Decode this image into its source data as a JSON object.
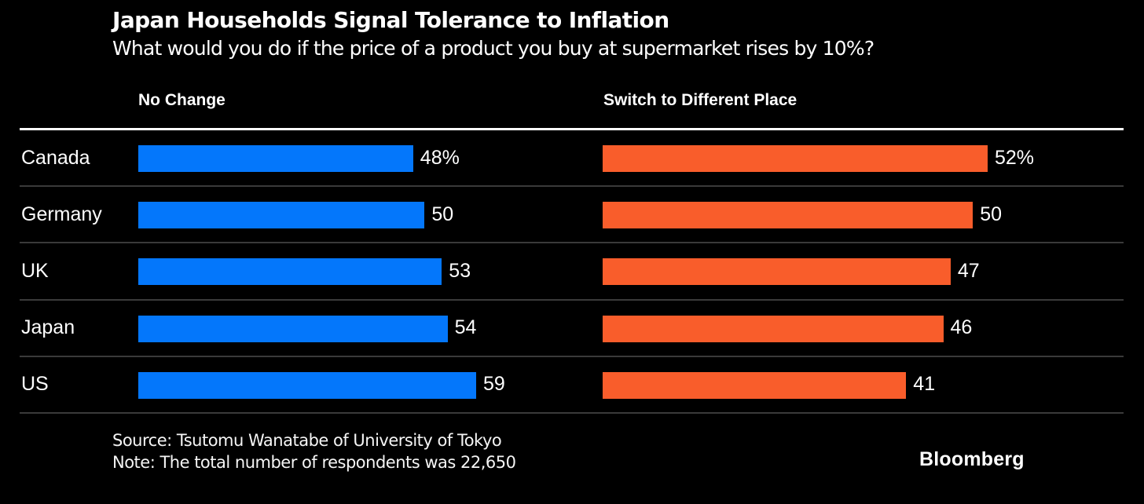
{
  "chart_data": {
    "type": "bar",
    "orientation": "horizontal",
    "title": "Japan Households Signal Tolerance to Inflation",
    "subtitle": "What would you do if the price of a product you buy at supermarket rises by 10%?",
    "categories": [
      "Canada",
      "Germany",
      "UK",
      "Japan",
      "US"
    ],
    "series": [
      {
        "name": "No Change",
        "color": "#0477fb",
        "values": [
          48,
          50,
          53,
          54,
          59
        ],
        "value_labels": [
          "48%",
          "50",
          "53",
          "54",
          "59"
        ]
      },
      {
        "name": "Switch to Different Place",
        "color": "#f95d2b",
        "values": [
          52,
          50,
          47,
          46,
          41
        ],
        "value_labels": [
          "52%",
          "50",
          "47",
          "46",
          "41"
        ]
      }
    ],
    "panel_ranges": {
      "no_change": [
        0,
        59
      ],
      "switch": [
        0,
        52
      ]
    },
    "grid": false,
    "legend_position": "column-headers-top"
  },
  "footer": {
    "source": "Source: Tsutomu Wanatabe of University of Tokyo",
    "note": "Note: The total number of respondents was 22,650",
    "branding": "Bloomberg"
  },
  "colors": {
    "background": "#000000",
    "bar_blue": "#0477fb",
    "bar_orange": "#f95d2b",
    "row_divider": "#3a3a3a",
    "header_rule": "#ffffff",
    "text": "#ffffff"
  }
}
